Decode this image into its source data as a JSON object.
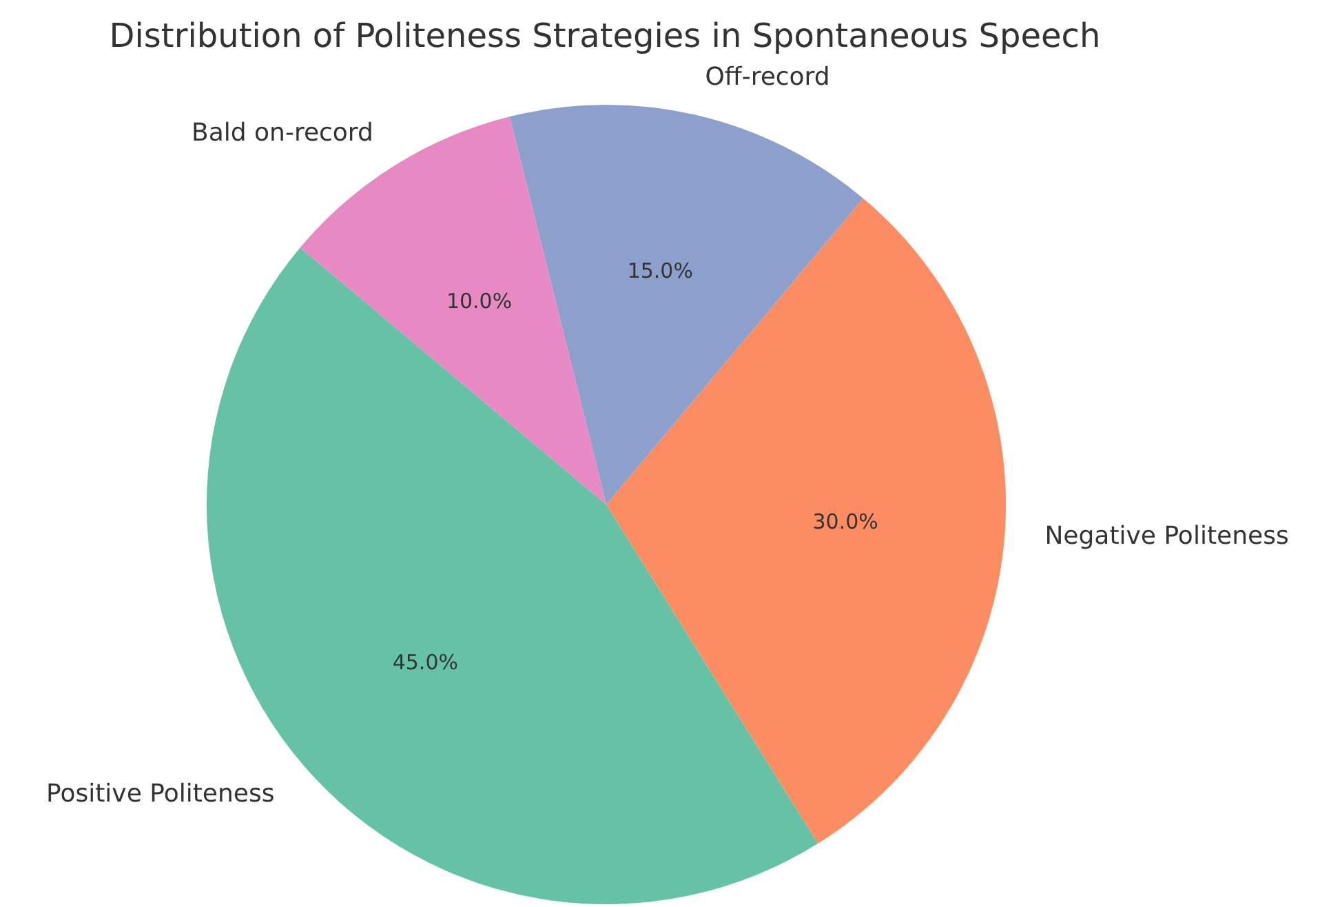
{
  "chart_data": {
    "type": "pie",
    "title": "Distribution of Politeness Strategies in Spontaneous Speech",
    "categories": [
      "Positive Politeness",
      "Negative Politeness",
      "Off-record",
      "Bald on-record"
    ],
    "values": [
      45,
      30,
      15,
      10
    ],
    "colors": [
      "#66c2a5",
      "#fc8d62",
      "#8da0cb",
      "#e78ac3"
    ],
    "value_labels": [
      "45.0%",
      "30.0%",
      "15.0%",
      "10.0%"
    ]
  }
}
